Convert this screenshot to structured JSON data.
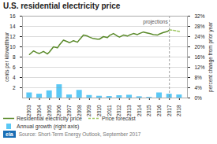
{
  "chart_data": {
    "type": "combo",
    "title": "U.S. residential electricity price",
    "ylabel": "cents per kilowatthour",
    "y2label": "percent change from prior year",
    "source": "Source: Short-Term Energy Outlook, September 2017",
    "logo": "eia",
    "xlim": [
      2002.3,
      2018.8
    ],
    "xticks": [
      2003,
      2004,
      2005,
      2006,
      2007,
      2008,
      2009,
      2010,
      2011,
      2012,
      2013,
      2014,
      2015,
      2016,
      2017,
      2018
    ],
    "ylim": [
      0,
      16
    ],
    "yticks": [
      2,
      4,
      6,
      8,
      10,
      12,
      14,
      16
    ],
    "y2lim": [
      0,
      32
    ],
    "y2ticks": [
      {
        "value": 0,
        "label": "0%"
      },
      {
        "value": 4,
        "label": "4%"
      },
      {
        "value": 8,
        "label": "8%"
      },
      {
        "value": 12,
        "label": "12%"
      },
      {
        "value": 16,
        "label": "16%"
      },
      {
        "value": 20,
        "label": "20%"
      },
      {
        "value": 24,
        "label": "24%"
      },
      {
        "value": 28,
        "label": "28%"
      },
      {
        "value": 32,
        "label": "32%"
      }
    ],
    "grid": true,
    "legend": "bottom",
    "annotations": [
      {
        "x": 2017,
        "text": "projections",
        "line_style": "dashed"
      }
    ],
    "series": [
      {
        "name": "Residential electricity price",
        "type": "line",
        "color": "#5a8a2a",
        "x": [
          2003,
          2003.4,
          2003.8,
          2004,
          2004.4,
          2004.8,
          2005,
          2005.4,
          2005.8,
          2006,
          2006.4,
          2006.8,
          2007,
          2007.4,
          2007.8,
          2008,
          2008.4,
          2008.8,
          2009,
          2009.4,
          2009.8,
          2010,
          2010.4,
          2010.8,
          2011,
          2011.4,
          2011.8,
          2012,
          2012.4,
          2012.8,
          2013,
          2013.4,
          2013.8,
          2014,
          2014.4,
          2014.8,
          2015,
          2015.4,
          2015.8,
          2016,
          2016.4,
          2016.8,
          2017
        ],
        "values": [
          8.5,
          9.2,
          8.8,
          8.7,
          9.1,
          8.6,
          9.0,
          10.0,
          9.8,
          10.4,
          11.3,
          11.0,
          10.8,
          11.2,
          10.9,
          11.4,
          12.3,
          12.1,
          11.9,
          11.6,
          11.5,
          11.5,
          12.0,
          11.8,
          12.2,
          12.6,
          12.1,
          11.9,
          12.3,
          12.1,
          12.3,
          12.6,
          12.4,
          12.6,
          12.9,
          12.7,
          12.6,
          12.4,
          12.3,
          12.5,
          12.8,
          13.0,
          13.3
        ]
      },
      {
        "name": "Price forecast",
        "type": "line",
        "line_style": "dashed",
        "color": "#a0c864",
        "x": [
          2017,
          2017.5,
          2018
        ],
        "values": [
          13.3,
          13.2,
          13.0
        ]
      },
      {
        "name": "Annual growth (right axis)",
        "type": "bar",
        "axis": "y2",
        "color": "#5bc8f5",
        "x": [
          2003,
          2004,
          2005,
          2006,
          2007,
          2008,
          2009,
          2010,
          2011,
          2012,
          2013,
          2014,
          2015,
          2016,
          2017,
          2018
        ],
        "values": [
          2.0,
          1.5,
          2.8,
          5.2,
          1.2,
          3.0,
          1.0,
          0.7,
          0.6,
          0.9,
          1.1,
          0.5,
          0.3,
          2.0,
          1.5,
          1.2
        ]
      }
    ]
  }
}
